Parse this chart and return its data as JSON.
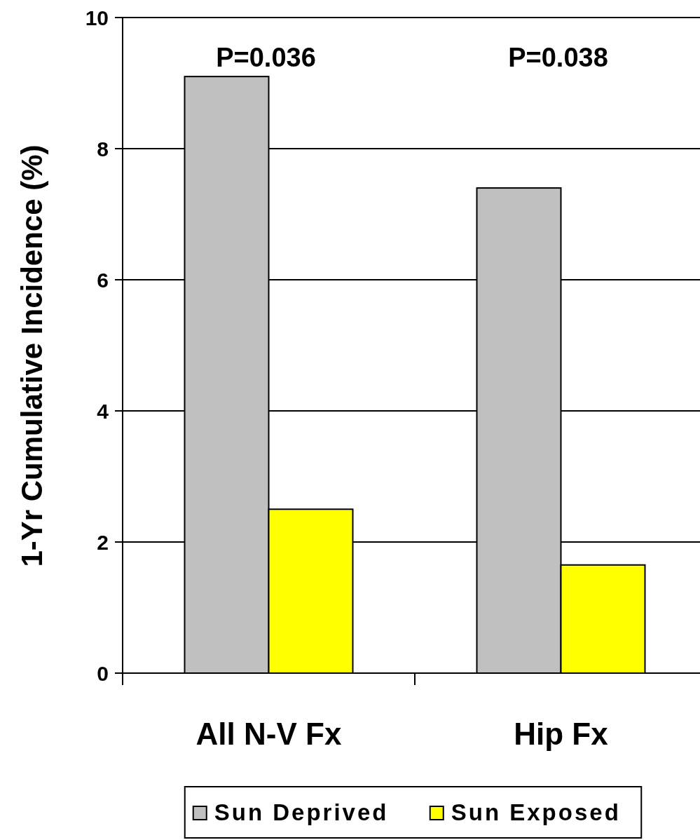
{
  "chart_data": {
    "type": "bar",
    "ylabel": "1-Yr Cumulative Incidence (%)",
    "categories": [
      "All N-V Fx",
      "Hip Fx"
    ],
    "series": [
      {
        "name": "Sun Deprived",
        "color": "#c0c0c0",
        "values": [
          9.1,
          7.4
        ]
      },
      {
        "name": "Sun Exposed",
        "color": "#ffff00",
        "values": [
          2.5,
          1.65
        ]
      }
    ],
    "ylim": [
      0,
      10
    ],
    "yticks": [
      0,
      2,
      4,
      6,
      8,
      10
    ],
    "grid": "y",
    "legend": "bottom",
    "annotations": [
      "P=0.036",
      "P=0.038"
    ]
  }
}
